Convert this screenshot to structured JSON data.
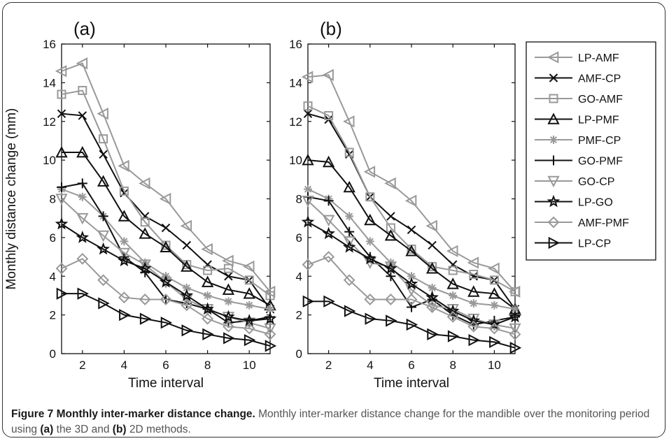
{
  "figure": {
    "caption_title": "Figure 7 Monthly inter-marker distance change.",
    "caption_parts": [
      {
        "text": " Monthly inter-marker distance change for the mandible over the monitoring period using ",
        "bold": false
      },
      {
        "text": "(a)",
        "bold": true
      },
      {
        "text": " the 3D and ",
        "bold": false
      },
      {
        "text": "(b)",
        "bold": true
      },
      {
        "text": " 2D methods.",
        "bold": false
      }
    ]
  },
  "colors": {
    "gray": "#999999",
    "black": "#111111"
  },
  "chart_data": [
    {
      "type": "line",
      "panel_label": "(a)",
      "xlabel": "Time interval",
      "ylabel": "Monthly distance change (mm)",
      "xlim": [
        1,
        11
      ],
      "ylim": [
        0,
        16
      ],
      "xticks": [
        2,
        4,
        6,
        8,
        10
      ],
      "yticks": [
        0,
        2,
        4,
        6,
        8,
        10,
        12,
        14,
        16
      ],
      "grid": false,
      "x": [
        1,
        2,
        3,
        4,
        5,
        6,
        7,
        8,
        9,
        10,
        11
      ],
      "series": [
        {
          "name": "LP-AMF",
          "color": "gray",
          "marker": "triangle-left",
          "values": [
            14.6,
            15.0,
            12.4,
            9.7,
            8.8,
            8.0,
            6.6,
            5.4,
            4.8,
            4.5,
            3.2
          ]
        },
        {
          "name": "AMF-CP",
          "color": "black",
          "marker": "x",
          "values": [
            12.4,
            12.3,
            10.3,
            8.3,
            7.1,
            6.5,
            5.6,
            4.6,
            4.0,
            3.8,
            2.3
          ]
        },
        {
          "name": "GO-AMF",
          "color": "gray",
          "marker": "square",
          "values": [
            13.4,
            13.6,
            11.1,
            8.4,
            6.8,
            5.6,
            4.6,
            4.3,
            4.4,
            3.8,
            3.0
          ]
        },
        {
          "name": "LP-PMF",
          "color": "black",
          "marker": "triangle-up",
          "values": [
            10.4,
            10.4,
            8.9,
            7.1,
            6.2,
            5.5,
            4.5,
            3.7,
            3.3,
            3.1,
            2.5
          ]
        },
        {
          "name": "PMF-CP",
          "color": "gray",
          "marker": "asterisk",
          "values": [
            8.5,
            8.1,
            7.1,
            5.8,
            4.7,
            4.0,
            3.4,
            3.0,
            2.7,
            2.5,
            2.3
          ]
        },
        {
          "name": "GO-PMF",
          "color": "black",
          "marker": "plus",
          "values": [
            8.6,
            8.8,
            7.1,
            5.0,
            4.2,
            2.8,
            2.6,
            2.3,
            1.6,
            1.7,
            1.9
          ]
        },
        {
          "name": "GO-CP",
          "color": "gray",
          "marker": "triangle-down",
          "values": [
            8.0,
            7.0,
            6.1,
            5.2,
            4.6,
            3.7,
            2.8,
            2.3,
            1.9,
            1.6,
            1.3
          ]
        },
        {
          "name": "LP-GO",
          "color": "black",
          "marker": "star",
          "values": [
            6.7,
            6.0,
            5.4,
            4.8,
            4.4,
            3.7,
            3.0,
            2.3,
            1.9,
            1.7,
            1.8
          ]
        },
        {
          "name": "AMF-PMF",
          "color": "gray",
          "marker": "diamond",
          "values": [
            4.4,
            4.9,
            3.8,
            2.9,
            2.8,
            2.8,
            2.5,
            1.8,
            1.4,
            1.3,
            1.0
          ]
        },
        {
          "name": "LP-CP",
          "color": "black",
          "marker": "triangle-right",
          "values": [
            3.1,
            3.1,
            2.6,
            2.0,
            1.8,
            1.6,
            1.2,
            1.0,
            0.8,
            0.7,
            0.4
          ]
        }
      ]
    },
    {
      "type": "line",
      "panel_label": "(b)",
      "xlabel": "Time interval",
      "ylabel": "",
      "xlim": [
        1,
        11
      ],
      "ylim": [
        0,
        16
      ],
      "xticks": [
        2,
        4,
        6,
        8,
        10
      ],
      "yticks": [
        0,
        2,
        4,
        6,
        8,
        10,
        12,
        14,
        16
      ],
      "grid": false,
      "x": [
        1,
        2,
        3,
        4,
        5,
        6,
        7,
        8,
        9,
        10,
        11
      ],
      "series": [
        {
          "name": "LP-AMF",
          "color": "gray",
          "marker": "triangle-left",
          "values": [
            14.3,
            14.4,
            12.0,
            9.4,
            8.8,
            7.9,
            6.6,
            5.3,
            4.7,
            4.4,
            3.2
          ]
        },
        {
          "name": "AMF-CP",
          "color": "black",
          "marker": "x",
          "values": [
            12.4,
            12.1,
            10.3,
            8.1,
            7.1,
            6.4,
            5.6,
            4.6,
            4.0,
            3.8,
            2.3
          ]
        },
        {
          "name": "GO-AMF",
          "color": "gray",
          "marker": "square",
          "values": [
            12.8,
            12.3,
            10.4,
            8.1,
            6.5,
            5.4,
            4.5,
            4.3,
            4.1,
            3.8,
            3.2
          ]
        },
        {
          "name": "LP-PMF",
          "color": "black",
          "marker": "triangle-up",
          "values": [
            10.0,
            9.9,
            8.6,
            6.9,
            6.1,
            5.3,
            4.4,
            3.6,
            3.2,
            3.1,
            2.3
          ]
        },
        {
          "name": "PMF-CP",
          "color": "gray",
          "marker": "asterisk",
          "values": [
            8.5,
            8.0,
            7.1,
            5.8,
            4.7,
            4.0,
            3.4,
            3.0,
            2.6,
            2.5,
            2.3
          ]
        },
        {
          "name": "GO-PMF",
          "color": "black",
          "marker": "plus",
          "values": [
            8.1,
            7.9,
            6.3,
            5.0,
            4.0,
            2.4,
            2.8,
            2.0,
            1.5,
            1.7,
            1.9
          ]
        },
        {
          "name": "GO-CP",
          "color": "gray",
          "marker": "triangle-down",
          "values": [
            7.9,
            6.9,
            5.8,
            4.7,
            4.5,
            3.3,
            2.5,
            2.3,
            1.8,
            1.5,
            1.3
          ]
        },
        {
          "name": "LP-GO",
          "color": "black",
          "marker": "star",
          "values": [
            6.8,
            6.2,
            5.5,
            4.9,
            4.4,
            3.6,
            2.9,
            2.2,
            1.7,
            1.5,
            1.9
          ]
        },
        {
          "name": "AMF-PMF",
          "color": "gray",
          "marker": "diamond",
          "values": [
            4.6,
            5.0,
            3.8,
            2.8,
            2.8,
            2.8,
            2.4,
            1.9,
            1.4,
            1.3,
            1.0
          ]
        },
        {
          "name": "LP-CP",
          "color": "black",
          "marker": "triangle-right",
          "values": [
            2.7,
            2.7,
            2.2,
            1.8,
            1.7,
            1.5,
            1.0,
            0.9,
            0.7,
            0.6,
            0.3
          ]
        }
      ]
    }
  ],
  "legend": {
    "placement": "right",
    "entries": [
      "LP-AMF",
      "AMF-CP",
      "GO-AMF",
      "LP-PMF",
      "PMF-CP",
      "GO-PMF",
      "GO-CP",
      "LP-GO",
      "AMF-PMF",
      "LP-CP"
    ]
  }
}
